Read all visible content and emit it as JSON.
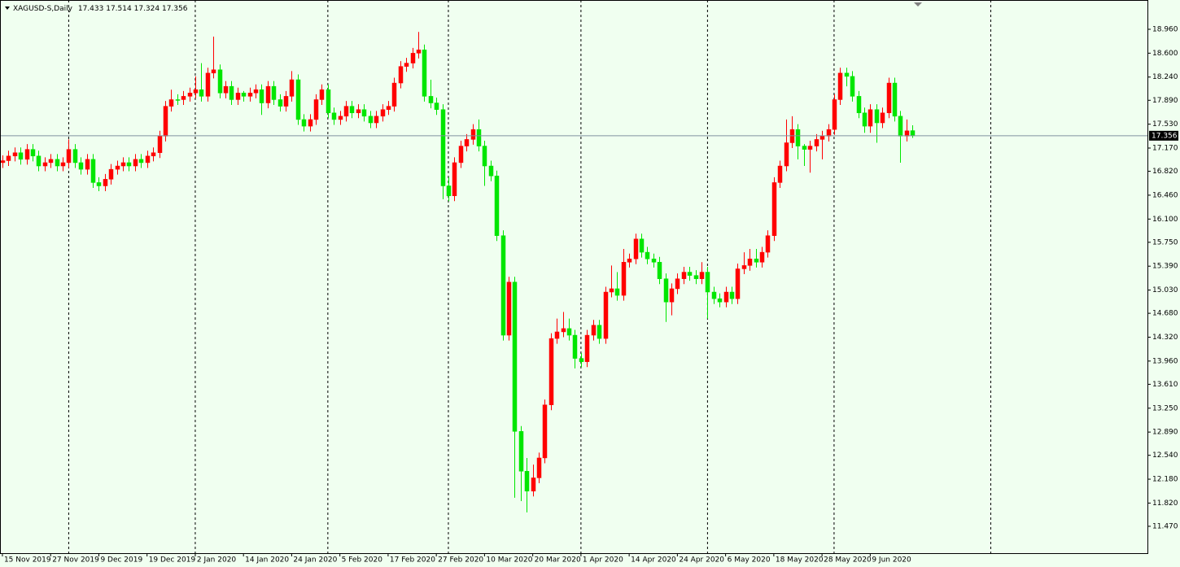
{
  "chart_data": {
    "type": "candlestick",
    "symbol": "XAGUSD-S,Daily",
    "bull_color": "#ff0000",
    "bear_color": "#00e600",
    "background": "#f0fff0",
    "grid": false,
    "open": [
      16.95,
      16.98,
      17.05,
      17.1,
      17.0,
      17.15,
      17.05,
      16.9,
      16.95,
      17.0,
      16.9,
      16.95,
      17.15,
      16.95,
      16.85,
      17.0,
      16.65,
      16.6,
      16.7,
      16.85,
      16.9,
      16.95,
      16.9,
      17.0,
      16.95,
      17.05,
      17.1,
      17.35,
      17.8,
      17.9,
      17.9,
      17.95,
      18.0,
      18.05,
      17.95,
      18.3,
      18.35,
      18.0,
      18.1,
      17.9,
      18.0,
      17.95,
      18.0,
      18.05,
      17.85,
      18.1,
      17.9,
      17.8,
      17.95,
      18.2,
      17.6,
      17.5,
      17.6,
      17.9,
      18.05,
      17.7,
      17.6,
      17.65,
      17.8,
      17.7,
      17.75,
      17.65,
      17.55,
      17.65,
      17.75,
      17.8,
      18.15,
      18.4,
      18.45,
      18.6,
      18.65,
      17.95,
      17.85,
      17.75,
      16.6,
      16.45,
      16.95,
      17.2,
      17.3,
      17.45,
      17.2,
      16.9,
      16.75,
      15.85,
      14.35,
      15.15,
      12.9,
      12.3,
      12.0,
      12.2,
      12.5,
      13.3,
      14.3,
      14.4,
      14.45,
      14.35,
      14.0,
      13.95,
      14.35,
      14.5,
      14.3,
      15.0,
      15.05,
      14.95,
      15.45,
      15.5,
      15.8,
      15.6,
      15.5,
      15.45,
      15.2,
      14.85,
      15.05,
      15.2,
      15.3,
      15.25,
      15.2,
      15.3,
      15.0,
      14.9,
      14.85,
      15.0,
      14.9,
      15.35,
      15.4,
      15.5,
      15.45,
      15.6,
      15.85,
      16.65,
      16.9,
      17.25,
      17.45,
      17.2,
      17.15,
      17.2,
      17.3,
      17.35,
      17.45,
      17.9,
      18.3,
      18.25,
      17.95,
      17.7,
      17.5,
      17.75,
      17.55,
      17.7,
      18.15,
      17.65,
      17.35,
      17.433
    ],
    "high": [
      17.06,
      17.13,
      17.18,
      17.18,
      17.23,
      17.23,
      17.13,
      17.03,
      17.08,
      17.08,
      17.03,
      17.3,
      17.23,
      17.03,
      17.08,
      17.08,
      16.73,
      16.78,
      16.93,
      16.98,
      17.03,
      17.03,
      17.08,
      17.08,
      17.13,
      17.18,
      17.43,
      17.88,
      18.05,
      17.98,
      18.03,
      18.08,
      18.25,
      18.45,
      18.38,
      18.85,
      18.43,
      18.18,
      18.18,
      18.08,
      18.03,
      18.08,
      18.13,
      18.13,
      18.18,
      18.18,
      17.98,
      18.03,
      18.33,
      18.28,
      17.68,
      17.68,
      17.98,
      18.13,
      18.13,
      17.78,
      17.73,
      17.88,
      17.88,
      17.83,
      17.83,
      17.73,
      17.73,
      17.83,
      17.88,
      18.23,
      18.48,
      18.53,
      18.68,
      18.92,
      18.73,
      18.2,
      17.93,
      17.83,
      16.73,
      17.03,
      17.28,
      17.38,
      17.53,
      17.6,
      17.28,
      16.98,
      16.83,
      15.93,
      15.23,
      15.23,
      12.98,
      12.5,
      12.4,
      12.58,
      13.38,
      14.38,
      14.6,
      14.7,
      14.6,
      14.43,
      14.08,
      14.43,
      14.58,
      14.58,
      15.08,
      15.4,
      15.3,
      15.65,
      15.58,
      15.88,
      15.88,
      15.68,
      15.58,
      15.53,
      15.28,
      15.13,
      15.28,
      15.38,
      15.38,
      15.33,
      15.45,
      15.38,
      15.08,
      14.98,
      15.08,
      15.08,
      15.43,
      15.6,
      15.65,
      15.65,
      15.68,
      15.93,
      16.73,
      16.98,
      17.6,
      17.65,
      17.53,
      17.23,
      17.28,
      17.38,
      17.43,
      17.53,
      17.98,
      18.38,
      18.38,
      18.33,
      18.03,
      17.78,
      17.83,
      17.83,
      17.78,
      18.23,
      18.23,
      17.73,
      17.6,
      17.514
    ],
    "low": [
      16.87,
      16.9,
      16.97,
      16.92,
      16.92,
      16.97,
      16.82,
      16.82,
      16.87,
      16.82,
      16.82,
      16.87,
      16.87,
      16.77,
      16.77,
      16.57,
      16.52,
      16.52,
      16.62,
      16.77,
      16.82,
      16.82,
      16.82,
      16.87,
      16.87,
      16.97,
      17.02,
      17.27,
      17.72,
      17.82,
      17.82,
      17.87,
      17.92,
      17.87,
      17.87,
      18.22,
      17.92,
      17.92,
      17.82,
      17.82,
      17.87,
      17.87,
      17.92,
      17.67,
      17.77,
      17.82,
      17.72,
      17.72,
      17.87,
      17.52,
      17.42,
      17.42,
      17.52,
      17.82,
      17.62,
      17.52,
      17.52,
      17.57,
      17.62,
      17.62,
      17.57,
      17.47,
      17.47,
      17.57,
      17.67,
      17.72,
      18.07,
      18.32,
      18.37,
      18.52,
      17.87,
      17.77,
      17.67,
      16.4,
      16.37,
      16.37,
      16.87,
      17.12,
      17.22,
      17.12,
      16.6,
      16.67,
      15.77,
      14.27,
      14.27,
      11.9,
      11.85,
      11.68,
      11.92,
      12.12,
      12.42,
      13.22,
      14.22,
      14.32,
      14.27,
      13.85,
      13.87,
      13.87,
      14.27,
      14.22,
      14.22,
      14.92,
      14.87,
      14.87,
      15.37,
      15.42,
      15.52,
      15.42,
      15.37,
      15.12,
      14.55,
      14.65,
      14.97,
      15.12,
      15.17,
      15.12,
      15.12,
      14.6,
      14.82,
      14.77,
      14.77,
      14.82,
      14.82,
      15.27,
      15.32,
      15.37,
      15.37,
      15.52,
      15.77,
      16.57,
      16.82,
      17.17,
      17.0,
      16.9,
      16.8,
      17.12,
      17.0,
      17.27,
      17.37,
      17.82,
      18.1,
      17.87,
      17.62,
      17.4,
      17.4,
      17.25,
      17.47,
      17.62,
      17.57,
      16.95,
      17.27,
      17.324
    ],
    "close": [
      16.98,
      17.05,
      17.1,
      17.0,
      17.15,
      17.05,
      16.9,
      16.95,
      17.0,
      16.9,
      16.95,
      17.15,
      16.95,
      16.85,
      17.0,
      16.65,
      16.6,
      16.7,
      16.85,
      16.9,
      16.95,
      16.9,
      17.0,
      16.95,
      17.05,
      17.1,
      17.35,
      17.8,
      17.9,
      17.9,
      17.95,
      18.0,
      18.05,
      17.95,
      18.3,
      18.35,
      18.0,
      18.1,
      17.9,
      18.0,
      17.95,
      18.0,
      18.05,
      17.85,
      18.1,
      17.9,
      17.8,
      17.95,
      18.2,
      17.6,
      17.5,
      17.6,
      17.9,
      18.05,
      17.7,
      17.6,
      17.65,
      17.8,
      17.7,
      17.75,
      17.65,
      17.55,
      17.65,
      17.75,
      17.8,
      18.15,
      18.4,
      18.45,
      18.6,
      18.65,
      17.95,
      17.85,
      17.75,
      16.6,
      16.45,
      16.95,
      17.2,
      17.3,
      17.45,
      17.2,
      16.9,
      16.75,
      15.85,
      14.35,
      15.15,
      12.9,
      12.3,
      12.0,
      12.2,
      12.5,
      13.3,
      14.3,
      14.4,
      14.45,
      14.35,
      14.0,
      13.95,
      14.35,
      14.5,
      14.3,
      15.0,
      15.05,
      14.95,
      15.45,
      15.5,
      15.8,
      15.6,
      15.5,
      15.45,
      15.2,
      14.85,
      15.05,
      15.2,
      15.3,
      15.25,
      15.2,
      15.3,
      15.0,
      14.9,
      14.85,
      15.0,
      14.9,
      15.35,
      15.4,
      15.5,
      15.45,
      15.6,
      15.85,
      16.65,
      16.9,
      17.25,
      17.45,
      17.2,
      17.15,
      17.2,
      17.3,
      17.35,
      17.45,
      17.9,
      18.3,
      18.25,
      17.95,
      17.7,
      17.5,
      17.75,
      17.55,
      17.7,
      18.15,
      17.65,
      17.35,
      17.43,
      17.356
    ],
    "xlim": [
      -0.4,
      190
    ],
    "xticks": [
      {
        "value": 0,
        "label": "15 Nov 2019"
      },
      {
        "value": 8,
        "label": "27 Nov 2019"
      },
      {
        "value": 16,
        "label": "9 Dec 2019"
      },
      {
        "value": 24,
        "label": "19 Dec 2019"
      },
      {
        "value": 32,
        "label": "2 Jan 2020"
      },
      {
        "value": 40,
        "label": "14 Jan 2020"
      },
      {
        "value": 48,
        "label": "24 Jan 2020"
      },
      {
        "value": 56,
        "label": "5 Feb 2020"
      },
      {
        "value": 64,
        "label": "17 Feb 2020"
      },
      {
        "value": 72,
        "label": "27 Feb 2020"
      },
      {
        "value": 80,
        "label": "10 Mar 2020"
      },
      {
        "value": 88,
        "label": "20 Mar 2020"
      },
      {
        "value": 96,
        "label": "1 Apr 2020"
      },
      {
        "value": 104,
        "label": "14 Apr 2020"
      },
      {
        "value": 112,
        "label": "24 Apr 2020"
      },
      {
        "value": 120,
        "label": "6 May 2020"
      },
      {
        "value": 128,
        "label": "18 May 2020"
      },
      {
        "value": 136,
        "label": "28 May 2020"
      },
      {
        "value": 144,
        "label": "9 Jun 2020"
      }
    ],
    "period_separators": [
      11,
      32,
      54,
      74,
      96,
      117,
      138,
      164
    ],
    "ylim": [
      11.065,
      19.34
    ],
    "yticks": [
      {
        "value": 18.96,
        "label": "18.960"
      },
      {
        "value": 18.6,
        "label": "18.600"
      },
      {
        "value": 18.24,
        "label": "18.240"
      },
      {
        "value": 17.89,
        "label": "17.890"
      },
      {
        "value": 17.53,
        "label": "17.530"
      },
      {
        "value": 17.17,
        "label": "17.170"
      },
      {
        "value": 16.82,
        "label": "16.820"
      },
      {
        "value": 16.46,
        "label": "16.460"
      },
      {
        "value": 16.1,
        "label": "16.100"
      },
      {
        "value": 15.75,
        "label": "15.750"
      },
      {
        "value": 15.39,
        "label": "15.390"
      },
      {
        "value": 15.03,
        "label": "15.030"
      },
      {
        "value": 14.68,
        "label": "14.680"
      },
      {
        "value": 14.32,
        "label": "14.320"
      },
      {
        "value": 13.96,
        "label": "13.960"
      },
      {
        "value": 13.61,
        "label": "13.610"
      },
      {
        "value": 13.25,
        "label": "13.250"
      },
      {
        "value": 12.89,
        "label": "12.890"
      },
      {
        "value": 12.54,
        "label": "12.540"
      },
      {
        "value": 12.18,
        "label": "12.180"
      },
      {
        "value": 11.82,
        "label": "11.820"
      },
      {
        "value": 11.47,
        "label": "11.470"
      }
    ]
  }
}
